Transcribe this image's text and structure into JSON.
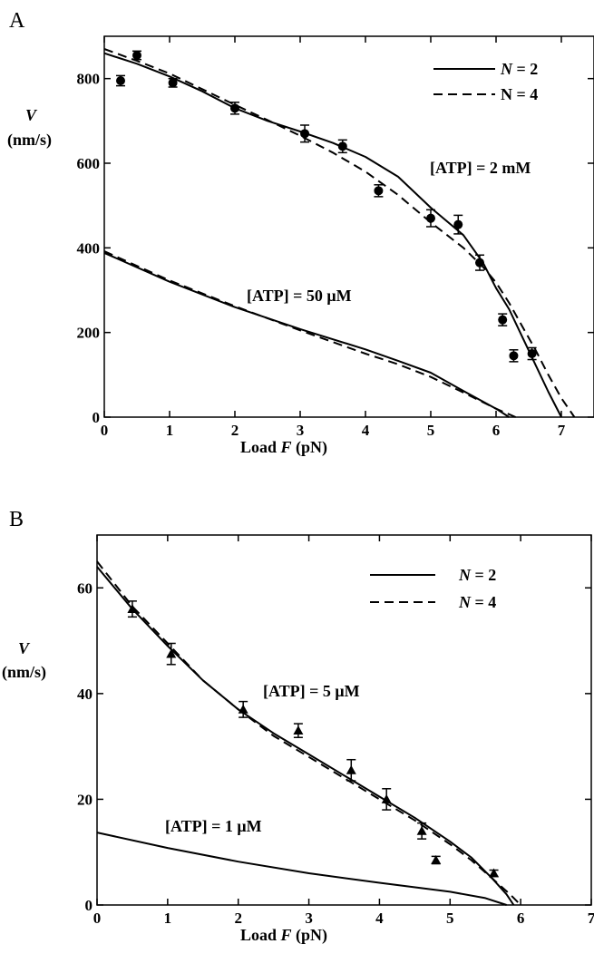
{
  "chart_data": [
    {
      "type": "line",
      "panel_label": "A",
      "xlabel_prefix": "Load ",
      "xlabel_var": "F",
      "xlabel_unit": " (pN)",
      "ylabel_var": "V",
      "ylabel_unit": "(nm/s)",
      "xlim": [
        0,
        7.5
      ],
      "ylim": [
        0,
        900
      ],
      "xticks": [
        "0",
        "1",
        "2",
        "3",
        "4",
        "5",
        "6",
        "7"
      ],
      "yticks": [
        "0",
        "200",
        "400",
        "600",
        "800"
      ],
      "legend": [
        {
          "label_var": "N",
          "label_rest": " = 2",
          "style": "solid"
        },
        {
          "label_var": "",
          "label_rest": "N = 4",
          "style": "dashed"
        }
      ],
      "annotations": [
        "[ATP] = 2 mM",
        "[ATP] = 50 μM"
      ],
      "series": [
        {
          "style": "solid",
          "group": "2mM",
          "x": [
            0,
            0.5,
            1,
            1.5,
            2,
            2.5,
            3,
            3.5,
            4,
            4.5,
            5,
            5.5,
            5.8,
            6.0,
            6.2,
            6.4,
            6.6,
            6.8,
            7.0
          ],
          "y": [
            860,
            835,
            805,
            770,
            730,
            700,
            675,
            648,
            615,
            568,
            495,
            430,
            365,
            305,
            255,
            190,
            125,
            60,
            0
          ]
        },
        {
          "style": "dashed",
          "group": "2mM",
          "x": [
            0,
            0.5,
            1,
            1.5,
            2,
            2.5,
            3,
            3.5,
            4,
            4.5,
            5,
            5.5,
            5.8,
            6.0,
            6.2,
            6.4,
            6.6,
            6.8,
            7.0,
            7.2
          ],
          "y": [
            870,
            842,
            812,
            775,
            738,
            702,
            665,
            625,
            580,
            525,
            460,
            400,
            355,
            318,
            270,
            215,
            160,
            100,
            45,
            0
          ]
        },
        {
          "style": "solid",
          "group": "50uM",
          "x": [
            0,
            1,
            2,
            3,
            4,
            4.5,
            5,
            5.5,
            6,
            6.2
          ],
          "y": [
            388,
            320,
            260,
            208,
            160,
            133,
            105,
            62,
            20,
            0
          ]
        },
        {
          "style": "dashed",
          "group": "50uM",
          "x": [
            0,
            1,
            2,
            3,
            4,
            4.5,
            5,
            5.5,
            6,
            6.3
          ],
          "y": [
            392,
            323,
            262,
            205,
            150,
            125,
            95,
            58,
            20,
            0
          ]
        }
      ],
      "points": {
        "marker": "circle",
        "x": [
          0.25,
          0.5,
          1.05,
          2.0,
          3.07,
          3.65,
          4.2,
          5.0,
          5.42,
          5.75,
          6.1,
          6.27,
          6.55
        ],
        "y": [
          795,
          855,
          790,
          730,
          670,
          640,
          535,
          470,
          455,
          365,
          230,
          145,
          150
        ],
        "err": [
          12,
          10,
          10,
          14,
          20,
          15,
          14,
          20,
          22,
          18,
          14,
          14,
          14
        ]
      }
    },
    {
      "type": "line",
      "panel_label": "B",
      "xlabel_prefix": "Load ",
      "xlabel_var": "F",
      "xlabel_unit": " (pN)",
      "ylabel_var": "V",
      "ylabel_unit": "(nm/s)",
      "xlim": [
        0,
        7
      ],
      "ylim": [
        0,
        70
      ],
      "xticks": [
        "0",
        "1",
        "2",
        "3",
        "4",
        "5",
        "6",
        "7"
      ],
      "yticks": [
        "0",
        "20",
        "40",
        "60"
      ],
      "legend": [
        {
          "label_var": "N",
          "label_rest": " = 2",
          "style": "solid"
        },
        {
          "label_var": "N",
          "label_rest": " = 4",
          "style": "dashed"
        }
      ],
      "annotations": [
        "[ATP] = 5 μM",
        "[ATP] = 1 μM"
      ],
      "series": [
        {
          "style": "solid",
          "group": "5uM",
          "x": [
            0,
            0.5,
            1,
            1.5,
            2,
            2.5,
            3,
            3.5,
            4,
            4.5,
            5,
            5.3,
            5.6,
            5.8,
            5.9
          ],
          "y": [
            64,
            56,
            49,
            42.5,
            37,
            32.5,
            28.5,
            24.5,
            20.5,
            16.5,
            12,
            9,
            5,
            2,
            0
          ]
        },
        {
          "style": "dashed",
          "group": "5uM",
          "x": [
            0,
            0.5,
            1,
            1.5,
            2,
            2.5,
            3,
            3.5,
            4,
            4.5,
            5,
            5.3,
            5.6,
            5.85,
            6.0
          ],
          "y": [
            65,
            56.5,
            49.5,
            42.5,
            37,
            32,
            28,
            24,
            20,
            16,
            11.5,
            8.5,
            5,
            2,
            0
          ]
        },
        {
          "style": "solid",
          "group": "1uM",
          "x": [
            0,
            1,
            2,
            3,
            4,
            5,
            5.5,
            5.8
          ],
          "y": [
            13.7,
            10.8,
            8.2,
            6.0,
            4.2,
            2.5,
            1.3,
            0
          ]
        }
      ],
      "points": {
        "marker": "triangle",
        "x": [
          0.5,
          1.05,
          2.07,
          2.85,
          3.6,
          4.1,
          4.6,
          4.8,
          5.62
        ],
        "y": [
          56,
          47.5,
          37,
          33,
          25.5,
          20,
          14,
          8.5,
          6
        ],
        "err": [
          1.5,
          2,
          1.5,
          1.3,
          2,
          2,
          1.5,
          0.7,
          0.6
        ]
      }
    }
  ]
}
